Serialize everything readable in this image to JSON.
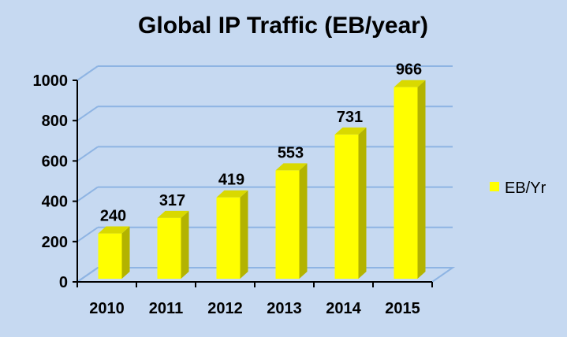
{
  "chart_data": {
    "type": "bar",
    "title": "Global IP Traffic (EB/year)",
    "categories": [
      "2010",
      "2011",
      "2012",
      "2013",
      "2014",
      "2015"
    ],
    "series": [
      {
        "name": "EB/Yr",
        "values": [
          240,
          317,
          419,
          553,
          731,
          966
        ]
      }
    ],
    "data_labels": [
      "240",
      "317",
      "419",
      "553",
      "731",
      "966"
    ],
    "y_ticks": [
      "0",
      "200",
      "400",
      "600",
      "800",
      "1000"
    ],
    "ylim": [
      0,
      1000
    ],
    "xlabel": "",
    "ylabel": "",
    "grid": true,
    "three_d": true,
    "legend_position": "right",
    "colors": {
      "background": "#c6d9f1",
      "bar_front": "#ffff00",
      "bar_side": "#b3b300",
      "bar_top": "#d9d900",
      "gridline": "#8eb4e3",
      "axis": "#000000"
    }
  }
}
